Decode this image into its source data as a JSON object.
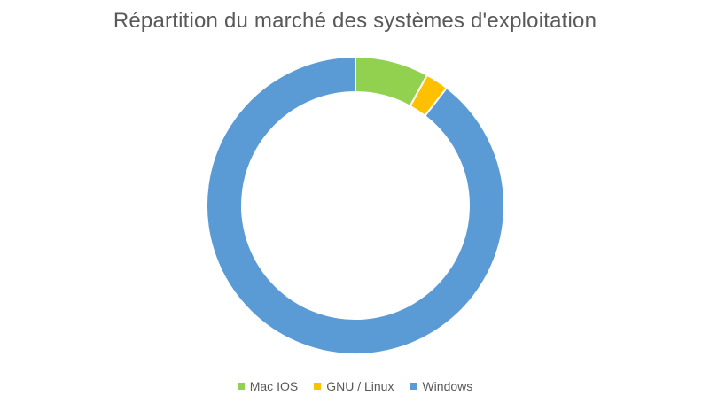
{
  "chart_data": {
    "type": "pie",
    "variant": "donut",
    "title": "Répartition du marché des systèmes d'exploitation",
    "categories": [
      "Mac IOS",
      "GNU / Linux",
      "Windows"
    ],
    "values": [
      8,
      2.5,
      89.5
    ],
    "colors": [
      "#92d050",
      "#ffc000",
      "#5b9bd5"
    ],
    "legend_position": "bottom"
  }
}
